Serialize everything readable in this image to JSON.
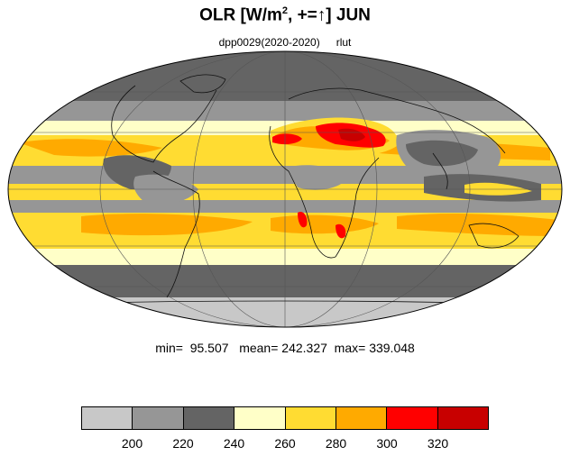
{
  "title": {
    "prefix": "OLR [W/m",
    "sup": "2",
    "suffix": ", +=↑] JUN"
  },
  "subtitle": {
    "experiment": "dpp0029(2020-2020)",
    "variable": "rlut"
  },
  "stats": {
    "min": "95.507",
    "mean": "242.327",
    "max": "339.048"
  },
  "colorbar": {
    "colors": [
      "#c8c8c8",
      "#969696",
      "#646464",
      "#ffffc8",
      "#ffdc32",
      "#ffaa00",
      "#ff0000",
      "#c80000"
    ],
    "labels": [
      "200",
      "220",
      "240",
      "260",
      "280",
      "300",
      "320"
    ]
  },
  "map": {
    "projection": "mollweide"
  }
}
